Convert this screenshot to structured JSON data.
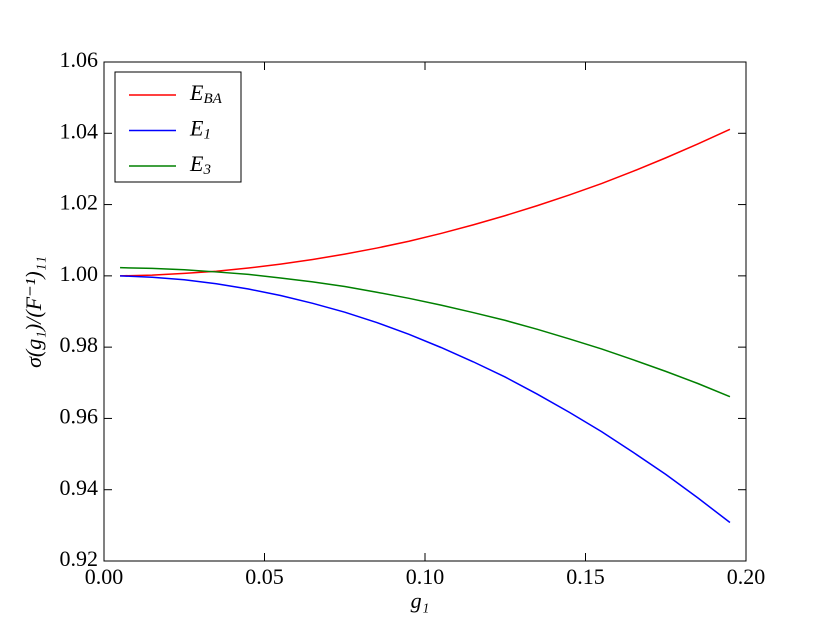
{
  "chart_data": {
    "type": "line",
    "xlabel": "g₁",
    "ylabel": "σ(g₁)/(F⁻¹)₁₁",
    "x": [
      0.005,
      0.015,
      0.025,
      0.035,
      0.045,
      0.055,
      0.065,
      0.075,
      0.085,
      0.095,
      0.105,
      0.115,
      0.125,
      0.135,
      0.145,
      0.155,
      0.165,
      0.175,
      0.185,
      0.195
    ],
    "series": [
      {
        "name": "EBA",
        "color": "#ff0000",
        "values": [
          1.0,
          1.0002,
          1.0007,
          1.0013,
          1.0022,
          1.0033,
          1.0046,
          1.0061,
          1.0078,
          1.0097,
          1.0119,
          1.0143,
          1.0169,
          1.0197,
          1.0227,
          1.0259,
          1.0294,
          1.0331,
          1.037,
          1.0411
        ]
      },
      {
        "name": "E1",
        "color": "#0000ff",
        "values": [
          1.0,
          0.9996,
          0.9989,
          0.9978,
          0.9963,
          0.9945,
          0.9923,
          0.9898,
          0.9869,
          0.9836,
          0.9799,
          0.9759,
          0.9716,
          0.9668,
          0.9617,
          0.9563,
          0.9504,
          0.9443,
          0.9377,
          0.9308
        ]
      },
      {
        "name": "E3",
        "color": "#008000",
        "values": [
          1.0023,
          1.0021,
          1.0017,
          1.0011,
          1.0004,
          0.9994,
          0.9983,
          0.997,
          0.9954,
          0.9937,
          0.9918,
          0.9897,
          0.9875,
          0.985,
          0.9823,
          0.9795,
          0.9764,
          0.9732,
          0.9698,
          0.9661
        ]
      }
    ],
    "xlim": [
      0,
      0.2
    ],
    "xticks": [
      {
        "value": 0,
        "label": "0.00"
      },
      {
        "value": 0.05,
        "label": "0.05"
      },
      {
        "value": 0.1,
        "label": "0.10"
      },
      {
        "value": 0.15,
        "label": "0.15"
      },
      {
        "value": 0.2,
        "label": "0.20"
      }
    ],
    "ylim": [
      0.92,
      1.06
    ],
    "yticks": [
      0.92,
      0.94,
      0.96,
      0.98,
      {
        "value": 1,
        "label": "1.00"
      },
      1.02,
      1.04,
      1.06
    ],
    "legend": "upper left",
    "grid": false
  }
}
